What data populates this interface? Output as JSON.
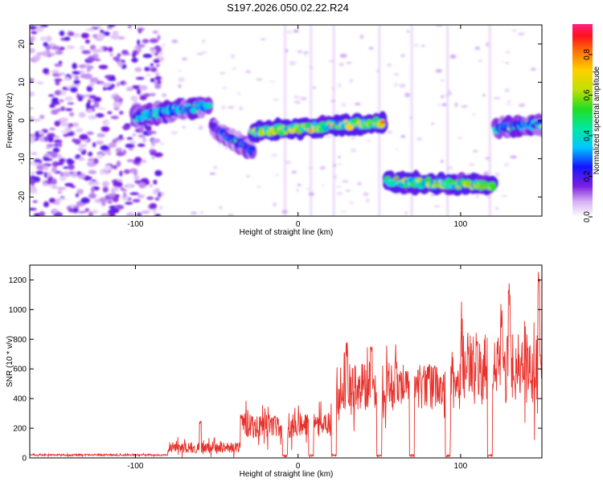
{
  "title": "S197.2026.050.02.22.R24",
  "chart_data": [
    {
      "type": "heatmap",
      "title": "S197.2026.050.02.22.R24",
      "xlabel": "Height of straight line (km)",
      "ylabel": "Frequency (Hz)",
      "xlim": [
        -165,
        150
      ],
      "ylim": [
        -25,
        25
      ],
      "xticks": [
        -100,
        0,
        100
      ],
      "yticks": [
        -20,
        -10,
        0,
        10,
        20
      ],
      "colorbar": {
        "label": "Normalized spectral amplitude",
        "range": [
          0.0,
          0.95
        ],
        "ticks": [
          0.0,
          0.2,
          0.4,
          0.6,
          0.8
        ]
      },
      "bands": [
        {
          "x_start": -100,
          "x_end": -55,
          "freq_start": 1,
          "freq_end": 4,
          "amplitude": 0.25
        },
        {
          "x_start": -52,
          "x_end": -28,
          "freq_start": -2,
          "freq_end": -8,
          "amplitude": 0.2
        },
        {
          "x_start": -28,
          "x_end": 52,
          "freq_start": -3,
          "freq_end": -0.5,
          "amplitude": 0.45
        },
        {
          "x_start": 55,
          "x_end": 120,
          "freq_start": -16,
          "freq_end": -17,
          "amplitude": 0.4
        },
        {
          "x_start": 122,
          "x_end": 150,
          "freq_start": -2,
          "freq_end": -1,
          "amplitude": 0.25
        }
      ]
    },
    {
      "type": "line",
      "title": "",
      "xlabel": "Height of straight line (km)",
      "ylabel": "SNR (10 * v/v)",
      "xlim": [
        -165,
        150
      ],
      "ylim": [
        0,
        1300
      ],
      "xticks": [
        -100,
        0,
        100
      ],
      "yticks": [
        0,
        200,
        400,
        600,
        800,
        1000,
        1200
      ],
      "color": "#e8302a",
      "segments": [
        {
          "x_start": -165,
          "x_end": -80,
          "level": 20,
          "noise": 10
        },
        {
          "x_start": -80,
          "x_end": -35,
          "level": 70,
          "noise": 60
        },
        {
          "x_start": -35,
          "x_end": 20,
          "level": 220,
          "noise": 140
        },
        {
          "x_start": 20,
          "x_end": 100,
          "level": 480,
          "noise": 260
        },
        {
          "x_start": 100,
          "x_end": 150,
          "level": 600,
          "noise": 400
        }
      ],
      "peaks": [
        {
          "x": -60,
          "y": 250
        },
        {
          "x": -35,
          "y": 300
        },
        {
          "x": 30,
          "y": 800
        },
        {
          "x": 45,
          "y": 760
        },
        {
          "x": 60,
          "y": 690
        },
        {
          "x": 80,
          "y": 620
        },
        {
          "x": 110,
          "y": 850
        },
        {
          "x": 125,
          "y": 1000
        },
        {
          "x": 130,
          "y": 1180
        },
        {
          "x": 148,
          "y": 1270
        }
      ],
      "dropouts_x": [
        -8,
        8,
        22,
        50,
        70,
        92,
        118
      ]
    }
  ]
}
